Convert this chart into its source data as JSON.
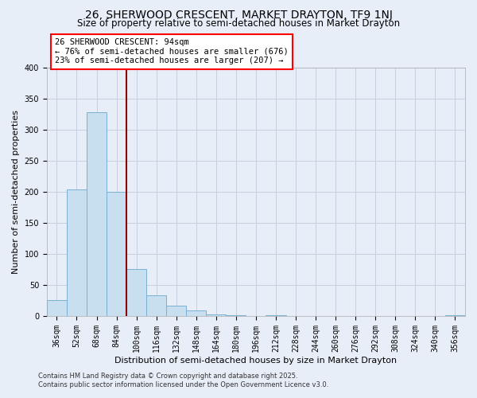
{
  "title": "26, SHERWOOD CRESCENT, MARKET DRAYTON, TF9 1NJ",
  "subtitle": "Size of property relative to semi-detached houses in Market Drayton",
  "xlabel": "Distribution of semi-detached houses by size in Market Drayton",
  "ylabel": "Number of semi-detached properties",
  "footer1": "Contains HM Land Registry data © Crown copyright and database right 2025.",
  "footer2": "Contains public sector information licensed under the Open Government Licence v3.0.",
  "annotation_line1": "26 SHERWOOD CRESCENT: 94sqm",
  "annotation_line2": "← 76% of semi-detached houses are smaller (676)",
  "annotation_line3": "23% of semi-detached houses are larger (207) →",
  "bar_values": [
    25,
    204,
    328,
    200,
    75,
    33,
    16,
    9,
    3,
    1,
    0,
    1,
    0,
    0,
    0,
    0,
    0,
    0,
    0,
    0,
    1
  ],
  "bar_labels": [
    "36sqm",
    "52sqm",
    "68sqm",
    "84sqm",
    "100sqm",
    "116sqm",
    "132sqm",
    "148sqm",
    "164sqm",
    "180sqm",
    "196sqm",
    "212sqm",
    "228sqm",
    "244sqm",
    "260sqm",
    "276sqm",
    "292sqm",
    "308sqm",
    "324sqm",
    "340sqm",
    "356sqm"
  ],
  "bar_color": "#c8dff0",
  "bar_edge_color": "#7ab0d4",
  "vline_x": 3.5,
  "vline_color": "#8b0000",
  "ylim": [
    0,
    400
  ],
  "yticks": [
    0,
    50,
    100,
    150,
    200,
    250,
    300,
    350,
    400
  ],
  "bg_color": "#e8eef8",
  "grid_color": "#c8d0e0",
  "title_fontsize": 10,
  "subtitle_fontsize": 8.5,
  "axis_label_fontsize": 8,
  "tick_fontsize": 7,
  "annotation_fontsize": 7.5,
  "footer_fontsize": 6
}
